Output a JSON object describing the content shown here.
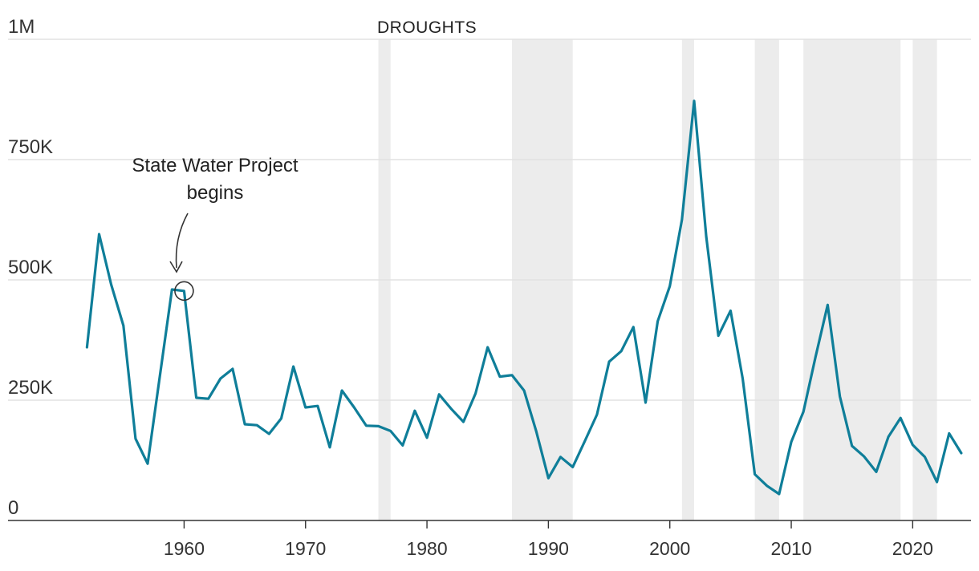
{
  "chart_data": {
    "type": "line",
    "title": "",
    "xlabel": "",
    "ylabel": "",
    "ylim": [
      0,
      1000000
    ],
    "xlim": [
      1945.5,
      2024.8
    ],
    "y_ticks": [
      0,
      250000,
      500000,
      750000,
      1000000
    ],
    "y_tick_labels": [
      "0",
      "250K",
      "500K",
      "750K",
      "1M"
    ],
    "x_ticks": [
      1960,
      1970,
      1980,
      1990,
      2000,
      2010,
      2020
    ],
    "x_tick_labels": [
      "1960",
      "1970",
      "1980",
      "1990",
      "2000",
      "2010",
      "2020"
    ],
    "grid": true,
    "line_color": "#0f7e99",
    "shade_color": "#ececec",
    "drought_label": "DROUGHTS",
    "droughts": [
      [
        1976,
        1977
      ],
      [
        1987,
        1992
      ],
      [
        2001,
        2002
      ],
      [
        2007,
        2009
      ],
      [
        2011,
        2019
      ],
      [
        2020,
        2022
      ]
    ],
    "annotation": {
      "text_lines": [
        "State Water Project",
        "begins"
      ],
      "x": 1960,
      "y": 477000
    },
    "x": [
      1952,
      1953,
      1954,
      1955,
      1956,
      1957,
      1958,
      1959,
      1960,
      1961,
      1962,
      1963,
      1964,
      1965,
      1966,
      1967,
      1968,
      1969,
      1970,
      1971,
      1972,
      1973,
      1974,
      1975,
      1976,
      1977,
      1978,
      1979,
      1980,
      1981,
      1982,
      1983,
      1984,
      1985,
      1986,
      1987,
      1988,
      1989,
      1990,
      1991,
      1992,
      1993,
      1994,
      1995,
      1996,
      1997,
      1998,
      1999,
      2000,
      2001,
      2002,
      2003,
      2004,
      2005,
      2006,
      2007,
      2008,
      2009,
      2010,
      2011,
      2012,
      2013,
      2014,
      2015,
      2016,
      2017,
      2018,
      2019,
      2020,
      2021,
      2022,
      2023,
      2024
    ],
    "series": [
      {
        "values": [
          360000,
          595000,
          490000,
          405000,
          170000,
          118000,
          300000,
          480000,
          477000,
          255000,
          253000,
          295000,
          315000,
          200000,
          198000,
          180000,
          212000,
          320000,
          235000,
          238000,
          152000,
          270000,
          235000,
          197000,
          196000,
          186000,
          156000,
          228000,
          172000,
          262000,
          232000,
          205000,
          264000,
          360000,
          299000,
          302000,
          270000,
          185000,
          88000,
          132000,
          111000,
          165000,
          220000,
          330000,
          352000,
          402000,
          245000,
          414000,
          487000,
          625000,
          872000,
          590000,
          384000,
          436000,
          295000,
          96000,
          72000,
          55000,
          163000,
          226000,
          340000,
          448000,
          258000,
          155000,
          133000,
          101000,
          174000,
          213000,
          157000,
          132000,
          80000,
          181000,
          140000
        ]
      }
    ]
  }
}
